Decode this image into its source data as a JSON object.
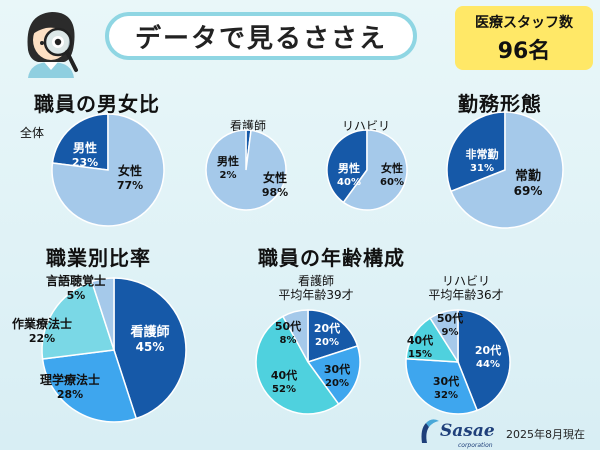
{
  "header": {
    "title": "データで見るささえ",
    "staff_label": "医療スタッフ数",
    "staff_count": "96名"
  },
  "sections": {
    "gender": "職員の男女比",
    "work": "勤務形態",
    "occupation": "職業別比率",
    "age": "職員の年齢構成"
  },
  "footer": {
    "logo": "Sasae",
    "logo_sub": "corporation",
    "date": "2025年8月現在"
  },
  "colors": {
    "dark": "#1659a8",
    "mid": "#3ea6ee",
    "light": "#a5c9ea",
    "cyan": "#7ad8e6",
    "teal": "#4fd1de"
  },
  "chart_data": [
    {
      "id": "gender-all",
      "type": "pie",
      "title": "全体",
      "slices": [
        {
          "label": "男性",
          "value": 23,
          "text": "23%",
          "color": "#1659a8"
        },
        {
          "label": "女性",
          "value": 77,
          "text": "77%",
          "color": "#a5c9ea"
        }
      ]
    },
    {
      "id": "gender-nurse",
      "type": "pie",
      "title": "看護師",
      "slices": [
        {
          "label": "男性",
          "value": 2,
          "text": "2%",
          "color": "#1659a8"
        },
        {
          "label": "女性",
          "value": 98,
          "text": "98%",
          "color": "#a5c9ea"
        }
      ]
    },
    {
      "id": "gender-rehab",
      "type": "pie",
      "title": "リハビリ",
      "slices": [
        {
          "label": "男性",
          "value": 40,
          "text": "40%",
          "color": "#1659a8"
        },
        {
          "label": "女性",
          "value": 60,
          "text": "60%",
          "color": "#a5c9ea"
        }
      ]
    },
    {
      "id": "work",
      "type": "pie",
      "title": "",
      "slices": [
        {
          "label": "非常勤",
          "value": 31,
          "text": "31%",
          "color": "#1659a8"
        },
        {
          "label": "常勤",
          "value": 69,
          "text": "69%",
          "color": "#a5c9ea"
        }
      ]
    },
    {
      "id": "occupation",
      "type": "pie",
      "title": "",
      "slices": [
        {
          "label": "看護師",
          "value": 45,
          "text": "45%",
          "color": "#1659a8"
        },
        {
          "label": "理学療法士",
          "value": 28,
          "text": "28%",
          "color": "#3ea6ee"
        },
        {
          "label": "作業療法士",
          "value": 22,
          "text": "22%",
          "color": "#7ad8e6"
        },
        {
          "label": "言語聴覚士",
          "value": 5,
          "text": "5%",
          "color": "#a5c9ea"
        }
      ]
    },
    {
      "id": "age-nurse",
      "type": "pie",
      "title": "看護師",
      "subtitle": "平均年齢39才",
      "slices": [
        {
          "label": "20代",
          "value": 20,
          "text": "20%",
          "color": "#1659a8"
        },
        {
          "label": "30代",
          "value": 20,
          "text": "20%",
          "color": "#3ea6ee"
        },
        {
          "label": "40代",
          "value": 52,
          "text": "52%",
          "color": "#4fd1de"
        },
        {
          "label": "50代",
          "value": 8,
          "text": "8%",
          "color": "#a5c9ea"
        }
      ]
    },
    {
      "id": "age-rehab",
      "type": "pie",
      "title": "リハビリ",
      "subtitle": "平均年齢36才",
      "slices": [
        {
          "label": "20代",
          "value": 44,
          "text": "44%",
          "color": "#1659a8"
        },
        {
          "label": "30代",
          "value": 32,
          "text": "32%",
          "color": "#3ea6ee"
        },
        {
          "label": "40代",
          "value": 15,
          "text": "15%",
          "color": "#4fd1de"
        },
        {
          "label": "50代",
          "value": 9,
          "text": "9%",
          "color": "#a5c9ea"
        }
      ]
    }
  ]
}
